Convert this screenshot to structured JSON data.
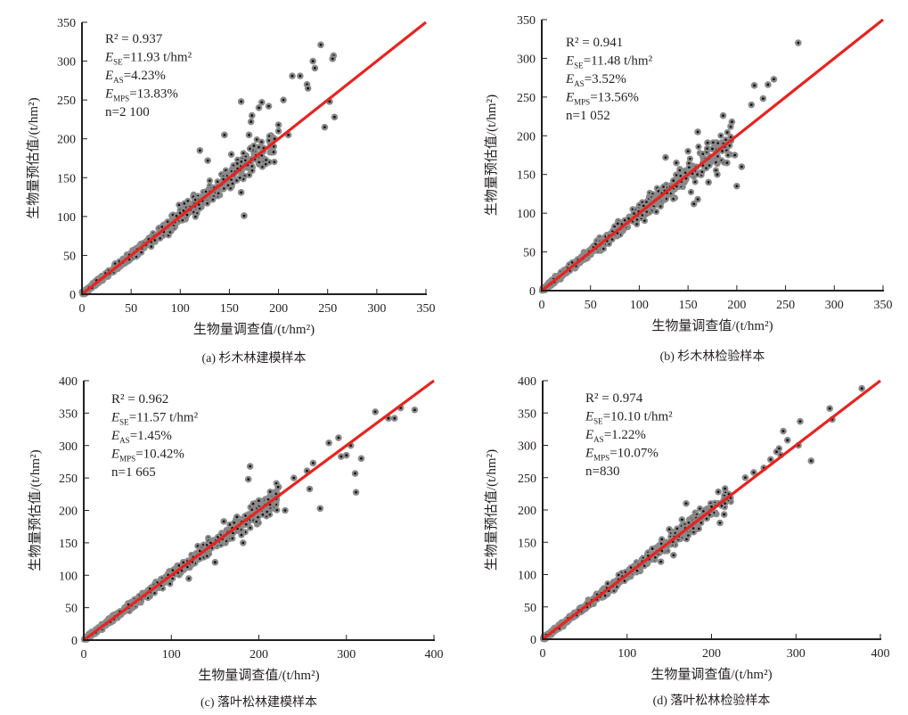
{
  "chart_data": [
    {
      "id": "a",
      "type": "scatter",
      "caption": "(a) 杉木林建模样本",
      "xlabel": "生物量调查值/(t/hm²)",
      "ylabel": "生物量预估值/(t/hm²)",
      "xlim": [
        0,
        350
      ],
      "ylim": [
        0,
        350
      ],
      "xticks": [
        "0",
        "50",
        "100",
        "150",
        "200",
        "250",
        "300",
        "350"
      ],
      "yticks": [
        "0",
        "50",
        "100",
        "150",
        "200",
        "250",
        "300",
        "350"
      ],
      "fit_line": {
        "from": [
          0,
          0
        ],
        "to": [
          350,
          350
        ],
        "color": "#e8231f"
      },
      "stats": {
        "r2": "R² = 0.937",
        "ese": "=11.93 t/hm²",
        "eas": "=4.23%",
        "emps": "=13.83%",
        "n": "n=2 100"
      },
      "sample_size": 2100,
      "spread": 0.13,
      "outliers": [
        [
          243,
          321
        ],
        [
          235,
          300
        ],
        [
          256,
          307
        ],
        [
          255,
          303
        ],
        [
          222,
          281
        ],
        [
          214,
          281
        ],
        [
          237,
          291
        ],
        [
          229,
          270
        ],
        [
          257,
          228
        ],
        [
          247,
          215
        ],
        [
          252,
          248
        ],
        [
          205,
          250
        ],
        [
          183,
          247
        ],
        [
          180,
          240
        ],
        [
          190,
          242
        ],
        [
          173,
          230
        ],
        [
          170,
          205
        ],
        [
          200,
          210
        ],
        [
          195,
          183
        ],
        [
          165,
          101
        ],
        [
          185,
          188
        ],
        [
          162,
          131
        ],
        [
          175,
          191
        ],
        [
          145,
          205
        ],
        [
          152,
          180
        ],
        [
          120,
          185
        ],
        [
          128,
          172
        ],
        [
          196,
          200
        ],
        [
          210,
          205
        ],
        [
          200,
          218
        ],
        [
          230,
          265
        ],
        [
          162,
          248
        ],
        [
          172,
          222
        ]
      ]
    },
    {
      "id": "b",
      "type": "scatter",
      "caption": "(b) 杉木林检验样本",
      "xlabel": "生物量调查值/(t/hm²)",
      "ylabel": "生物量预估值/(t/hm²)",
      "xlim": [
        0,
        350
      ],
      "ylim": [
        0,
        350
      ],
      "xticks": [
        "0",
        "50",
        "100",
        "150",
        "200",
        "250",
        "300",
        "350"
      ],
      "yticks": [
        "0",
        "50",
        "100",
        "150",
        "200",
        "250",
        "300",
        "350"
      ],
      "fit_line": {
        "from": [
          0,
          0
        ],
        "to": [
          350,
          350
        ],
        "color": "#e8231f"
      },
      "stats": {
        "r2": "R² = 0.941",
        "ese": "=11.48 t/hm²",
        "eas": "=3.52%",
        "emps": "=13.56%",
        "n": "n=1 052"
      },
      "sample_size": 1052,
      "spread": 0.13,
      "outliers": [
        [
          263,
          320
        ],
        [
          218,
          265
        ],
        [
          232,
          266
        ],
        [
          238,
          273
        ],
        [
          227,
          248
        ],
        [
          215,
          240
        ],
        [
          195,
          218
        ],
        [
          186,
          226
        ],
        [
          198,
          175
        ],
        [
          205,
          160
        ],
        [
          190,
          165
        ],
        [
          180,
          150
        ],
        [
          175,
          183
        ],
        [
          170,
          191
        ],
        [
          160,
          205
        ],
        [
          150,
          180
        ],
        [
          148,
          145
        ],
        [
          160,
          118
        ],
        [
          200,
          135
        ],
        [
          156,
          112
        ],
        [
          171,
          140
        ],
        [
          135,
          142
        ],
        [
          127,
          172
        ],
        [
          138,
          165
        ]
      ]
    },
    {
      "id": "c",
      "type": "scatter",
      "caption": "(c) 落叶松林建模样本",
      "xlabel": "生物量调查值/(t/hm²)",
      "ylabel": "生物量预估值/(t/hm²)",
      "xlim": [
        0,
        400
      ],
      "ylim": [
        0,
        400
      ],
      "xticks": [
        "0",
        "100",
        "200",
        "300",
        "400"
      ],
      "yticks": [
        "0",
        "50",
        "100",
        "150",
        "200",
        "250",
        "300",
        "350",
        "400"
      ],
      "fit_line": {
        "from": [
          0,
          0
        ],
        "to": [
          400,
          400
        ],
        "color": "#e8231f"
      },
      "stats": {
        "r2": "R² = 0.962",
        "ese": "=11.57 t/hm²",
        "eas": "=1.45%",
        "emps": "=10.42%",
        "n": "n=1 665"
      },
      "sample_size": 1665,
      "spread": 0.1,
      "outliers": [
        [
          378,
          355
        ],
        [
          362,
          358
        ],
        [
          348,
          342
        ],
        [
          333,
          352
        ],
        [
          355,
          342
        ],
        [
          310,
          257
        ],
        [
          311,
          228
        ],
        [
          317,
          280
        ],
        [
          300,
          285
        ],
        [
          294,
          283
        ],
        [
          291,
          312
        ],
        [
          280,
          304
        ],
        [
          262,
          273
        ],
        [
          255,
          261
        ],
        [
          240,
          250
        ],
        [
          222,
          236
        ],
        [
          230,
          200
        ],
        [
          200,
          215
        ],
        [
          190,
          268
        ],
        [
          188,
          248
        ],
        [
          175,
          190
        ],
        [
          182,
          150
        ],
        [
          160,
          183
        ],
        [
          145,
          150
        ],
        [
          150,
          120
        ],
        [
          120,
          95
        ],
        [
          270,
          203
        ],
        [
          258,
          233
        ],
        [
          305,
          300
        ]
      ]
    },
    {
      "id": "d",
      "type": "scatter",
      "caption": "(d) 落叶松林检验样本",
      "xlabel": "生物量调查值/(t/hm²)",
      "ylabel": "生物量预估值/(t/hm²)",
      "xlim": [
        0,
        400
      ],
      "ylim": [
        0,
        400
      ],
      "xticks": [
        "0",
        "100",
        "200",
        "300",
        "400"
      ],
      "yticks": [
        "0",
        "50",
        "100",
        "150",
        "200",
        "250",
        "300",
        "350",
        "400"
      ],
      "fit_line": {
        "from": [
          0,
          0
        ],
        "to": [
          400,
          400
        ],
        "color": "#e8231f"
      },
      "stats": {
        "r2": "R² = 0.974",
        "ese": "=10.10 t/hm²",
        "eas": "=1.22%",
        "emps": "=10.07%",
        "n": "n=830"
      },
      "sample_size": 830,
      "spread": 0.09,
      "outliers": [
        [
          378,
          388
        ],
        [
          340,
          357
        ],
        [
          343,
          340
        ],
        [
          318,
          276
        ],
        [
          305,
          337
        ],
        [
          303,
          300
        ],
        [
          290,
          308
        ],
        [
          285,
          322
        ],
        [
          280,
          295
        ],
        [
          277,
          290
        ],
        [
          270,
          278
        ],
        [
          282,
          285
        ],
        [
          262,
          265
        ],
        [
          250,
          258
        ],
        [
          240,
          250
        ],
        [
          216,
          233
        ],
        [
          208,
          228
        ],
        [
          215,
          193
        ],
        [
          210,
          180
        ],
        [
          200,
          205
        ],
        [
          170,
          210
        ],
        [
          165,
          185
        ],
        [
          150,
          170
        ],
        [
          155,
          130
        ],
        [
          130,
          140
        ],
        [
          140,
          120
        ]
      ]
    }
  ]
}
